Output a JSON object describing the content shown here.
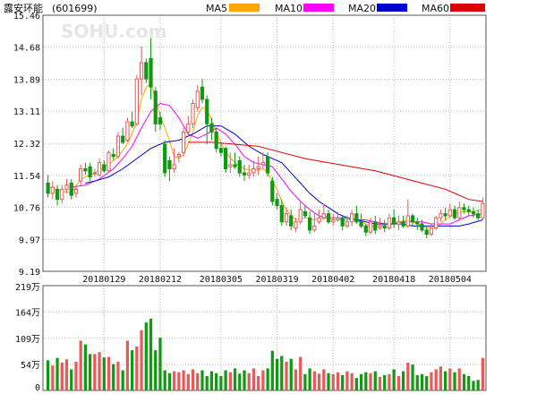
{
  "header": {
    "stock_name": "露安环能",
    "stock_code": "(601699)",
    "watermark": "SOHU.com"
  },
  "legend": [
    {
      "label": "MA5",
      "color": "#ffa500"
    },
    {
      "label": "MA10",
      "color": "#ff00ff"
    },
    {
      "label": "MA20",
      "color": "#0000cc"
    },
    {
      "label": "MA60",
      "color": "#dd0000"
    }
  ],
  "colors": {
    "up": "#e65a5a",
    "down": "#119911",
    "grid": "#bbbbbb",
    "frame": "#555555"
  },
  "chart_data": {
    "type": "candlestick",
    "price_axis": {
      "ticks": [
        "15.46",
        "14.68",
        "13.89",
        "13.11",
        "12.32",
        "11.54",
        "10.76",
        "9.97",
        "9.19"
      ],
      "ylim": [
        9.19,
        15.46
      ]
    },
    "volume_axis": {
      "ticks": [
        "219万",
        "164万",
        "109万",
        "54万",
        "0"
      ],
      "ylim": [
        0,
        219
      ]
    },
    "x_tick_labels": [
      "20180129",
      "20180212",
      "20180305",
      "20180319",
      "20180402",
      "20180418",
      "20180504"
    ],
    "x_tick_index": [
      12,
      24,
      37,
      49,
      61,
      74,
      86
    ],
    "candles": [
      [
        11.35,
        11.1,
        11.55,
        11.0
      ],
      [
        11.1,
        11.25,
        11.4,
        10.95
      ],
      [
        11.2,
        10.95,
        11.3,
        10.8
      ],
      [
        10.95,
        11.2,
        11.3,
        10.85
      ],
      [
        11.2,
        11.3,
        11.45,
        11.1
      ],
      [
        11.35,
        11.05,
        11.45,
        10.95
      ],
      [
        11.1,
        11.2,
        11.3,
        11.0
      ],
      [
        11.4,
        11.7,
        11.8,
        11.3
      ],
      [
        11.7,
        11.65,
        11.85,
        11.55
      ],
      [
        11.75,
        11.5,
        11.85,
        11.4
      ],
      [
        11.6,
        11.6,
        11.7,
        11.5
      ],
      [
        11.55,
        11.85,
        11.95,
        11.5
      ],
      [
        11.8,
        11.65,
        11.9,
        11.6
      ],
      [
        11.65,
        12.1,
        12.15,
        11.6
      ],
      [
        12.05,
        12.0,
        12.2,
        11.9
      ],
      [
        12.0,
        12.5,
        12.6,
        11.95
      ],
      [
        12.5,
        12.35,
        12.7,
        12.3
      ],
      [
        12.4,
        12.85,
        12.95,
        12.35
      ],
      [
        12.85,
        12.75,
        13.1,
        12.7
      ],
      [
        12.8,
        13.9,
        14.0,
        12.75
      ],
      [
        13.9,
        14.3,
        14.7,
        13.5
      ],
      [
        14.3,
        13.9,
        14.4,
        13.8
      ],
      [
        14.4,
        13.7,
        14.9,
        13.4
      ],
      [
        13.6,
        12.8,
        13.7,
        12.6
      ],
      [
        12.95,
        12.8,
        13.1,
        12.65
      ],
      [
        12.3,
        11.6,
        12.4,
        11.5
      ],
      [
        11.9,
        11.7,
        12.0,
        11.4
      ],
      [
        11.7,
        11.8,
        12.2,
        11.6
      ],
      [
        12.0,
        12.05,
        12.1,
        11.85
      ],
      [
        12.1,
        12.6,
        12.7,
        12.0
      ],
      [
        12.6,
        12.8,
        13.0,
        12.5
      ],
      [
        12.8,
        13.3,
        13.4,
        12.7
      ],
      [
        13.2,
        13.6,
        13.75,
        13.1
      ],
      [
        13.7,
        13.4,
        13.9,
        13.3
      ],
      [
        13.4,
        12.8,
        13.5,
        12.3
      ],
      [
        12.8,
        12.6,
        12.95,
        12.4
      ],
      [
        12.6,
        12.2,
        12.7,
        12.1
      ],
      [
        12.2,
        12.1,
        12.35,
        12.0
      ],
      [
        12.2,
        11.7,
        12.25,
        11.6
      ],
      [
        11.75,
        11.8,
        12.1,
        11.6
      ],
      [
        11.8,
        11.75,
        12.1,
        11.7
      ],
      [
        11.9,
        11.6,
        12.0,
        11.5
      ],
      [
        11.6,
        11.55,
        11.8,
        11.4
      ],
      [
        11.55,
        11.6,
        11.8,
        11.45
      ],
      [
        11.6,
        11.7,
        11.9,
        11.5
      ],
      [
        11.7,
        11.75,
        12.0,
        11.55
      ],
      [
        11.8,
        11.85,
        12.1,
        11.7
      ],
      [
        12.0,
        11.6,
        12.1,
        11.5
      ],
      [
        11.4,
        10.9,
        11.5,
        10.8
      ],
      [
        10.95,
        10.8,
        11.1,
        10.7
      ],
      [
        10.8,
        10.4,
        10.95,
        10.3
      ],
      [
        10.4,
        10.6,
        10.75,
        10.3
      ],
      [
        10.55,
        10.3,
        10.7,
        10.2
      ],
      [
        10.25,
        10.4,
        10.5,
        10.15
      ],
      [
        10.4,
        10.7,
        10.9,
        10.35
      ],
      [
        10.65,
        10.55,
        10.8,
        10.5
      ],
      [
        10.5,
        10.2,
        10.65,
        10.1
      ],
      [
        10.2,
        10.3,
        10.6,
        10.15
      ],
      [
        10.4,
        10.5,
        10.7,
        10.35
      ],
      [
        10.5,
        10.6,
        10.85,
        10.45
      ],
      [
        10.6,
        10.4,
        10.7,
        10.35
      ],
      [
        10.4,
        10.45,
        10.6,
        10.3
      ],
      [
        10.45,
        10.5,
        10.65,
        10.4
      ],
      [
        10.5,
        10.3,
        10.55,
        10.2
      ],
      [
        10.3,
        10.4,
        10.55,
        10.25
      ],
      [
        10.4,
        10.6,
        10.7,
        10.3
      ],
      [
        10.6,
        10.4,
        10.8,
        10.35
      ],
      [
        10.4,
        10.3,
        10.6,
        10.25
      ],
      [
        10.3,
        10.15,
        10.35,
        10.05
      ],
      [
        10.15,
        10.4,
        10.5,
        10.1
      ],
      [
        10.4,
        10.2,
        10.55,
        10.1
      ],
      [
        10.25,
        10.3,
        10.5,
        10.2
      ],
      [
        10.3,
        10.25,
        10.45,
        10.15
      ],
      [
        10.25,
        10.5,
        10.6,
        10.2
      ],
      [
        10.5,
        10.35,
        10.7,
        10.25
      ],
      [
        10.35,
        10.4,
        10.55,
        10.2
      ],
      [
        10.4,
        10.3,
        10.55,
        10.25
      ],
      [
        10.3,
        10.55,
        10.95,
        10.25
      ],
      [
        10.55,
        10.4,
        10.6,
        10.3
      ],
      [
        10.4,
        10.35,
        10.5,
        10.2
      ],
      [
        10.35,
        10.2,
        10.45,
        10.15
      ],
      [
        10.2,
        10.1,
        10.3,
        10.0
      ],
      [
        10.1,
        10.25,
        10.35,
        10.05
      ],
      [
        10.25,
        10.5,
        10.55,
        10.2
      ],
      [
        10.5,
        10.6,
        10.7,
        10.4
      ],
      [
        10.6,
        10.55,
        10.75,
        10.45
      ],
      [
        10.55,
        10.7,
        10.85,
        10.5
      ],
      [
        10.7,
        10.5,
        10.8,
        10.45
      ],
      [
        10.5,
        10.75,
        10.9,
        10.45
      ],
      [
        10.75,
        10.7,
        10.85,
        10.6
      ],
      [
        10.7,
        10.65,
        10.8,
        10.55
      ],
      [
        10.65,
        10.6,
        10.75,
        10.5
      ],
      [
        10.6,
        10.5,
        10.7,
        10.45
      ],
      [
        10.5,
        10.85,
        11.0,
        10.45
      ]
    ],
    "volumes": [
      63,
      52,
      68,
      58,
      65,
      44,
      60,
      104,
      96,
      76,
      76,
      80,
      69,
      70,
      55,
      60,
      42,
      104,
      84,
      92,
      126,
      142,
      150,
      84,
      110,
      42,
      36,
      40,
      38,
      42,
      34,
      44,
      36,
      42,
      30,
      40,
      36,
      30,
      42,
      38,
      46,
      35,
      42,
      36,
      46,
      30,
      42,
      46,
      83,
      66,
      72,
      60,
      66,
      44,
      70,
      34,
      46,
      40,
      35,
      44,
      36,
      34,
      38,
      32,
      40,
      36,
      26,
      34,
      38,
      36,
      40,
      28,
      32,
      34,
      44,
      30,
      40,
      58,
      54,
      32,
      34,
      30,
      38,
      44,
      50,
      40,
      46,
      38,
      46,
      34,
      30,
      20,
      22,
      68
    ],
    "moving_averages": {
      "MA5": [
        [
          0,
          11.25
        ],
        [
          5,
          11.1
        ],
        [
          7,
          11.45
        ],
        [
          10,
          11.6
        ],
        [
          13,
          11.8
        ],
        [
          15,
          12.0
        ],
        [
          17,
          12.3
        ],
        [
          19,
          12.85
        ],
        [
          20,
          13.4
        ],
        [
          21,
          13.7
        ],
        [
          22,
          13.8
        ],
        [
          23,
          13.4
        ],
        [
          24,
          13.0
        ],
        [
          25,
          12.7
        ],
        [
          26,
          12.4
        ],
        [
          27,
          12.0
        ],
        [
          28,
          11.95
        ],
        [
          29,
          12.05
        ],
        [
          30,
          12.3
        ],
        [
          31,
          12.6
        ],
        [
          32,
          13.0
        ],
        [
          33,
          13.2
        ],
        [
          34,
          13.15
        ],
        [
          35,
          12.9
        ],
        [
          36,
          12.6
        ],
        [
          37,
          12.35
        ],
        [
          38,
          12.1
        ],
        [
          40,
          11.85
        ],
        [
          42,
          11.7
        ],
        [
          44,
          11.65
        ],
        [
          46,
          11.7
        ],
        [
          47,
          11.6
        ],
        [
          48,
          11.4
        ],
        [
          49,
          11.2
        ],
        [
          50,
          10.9
        ],
        [
          51,
          10.7
        ],
        [
          52,
          10.55
        ],
        [
          53,
          10.45
        ],
        [
          55,
          10.5
        ],
        [
          57,
          10.45
        ],
        [
          59,
          10.5
        ],
        [
          61,
          10.45
        ],
        [
          63,
          10.45
        ],
        [
          65,
          10.45
        ],
        [
          67,
          10.4
        ],
        [
          69,
          10.3
        ],
        [
          71,
          10.3
        ],
        [
          73,
          10.35
        ],
        [
          75,
          10.4
        ],
        [
          77,
          10.45
        ],
        [
          79,
          10.35
        ],
        [
          81,
          10.25
        ],
        [
          83,
          10.25
        ],
        [
          85,
          10.45
        ],
        [
          87,
          10.6
        ],
        [
          89,
          10.65
        ],
        [
          91,
          10.65
        ],
        [
          93,
          10.7
        ]
      ],
      "MA10": [
        [
          5,
          11.25
        ],
        [
          8,
          11.3
        ],
        [
          11,
          11.45
        ],
        [
          14,
          11.7
        ],
        [
          16,
          11.95
        ],
        [
          18,
          12.25
        ],
        [
          20,
          12.7
        ],
        [
          22,
          13.1
        ],
        [
          24,
          13.3
        ],
        [
          26,
          13.25
        ],
        [
          28,
          12.95
        ],
        [
          30,
          12.55
        ],
        [
          32,
          12.45
        ],
        [
          34,
          12.55
        ],
        [
          36,
          12.7
        ],
        [
          38,
          12.55
        ],
        [
          40,
          12.3
        ],
        [
          42,
          12.0
        ],
        [
          44,
          11.85
        ],
        [
          46,
          11.8
        ],
        [
          48,
          11.75
        ],
        [
          50,
          11.45
        ],
        [
          52,
          11.15
        ],
        [
          54,
          10.9
        ],
        [
          56,
          10.7
        ],
        [
          58,
          10.55
        ],
        [
          60,
          10.5
        ],
        [
          62,
          10.5
        ],
        [
          64,
          10.5
        ],
        [
          66,
          10.45
        ],
        [
          68,
          10.45
        ],
        [
          70,
          10.4
        ],
        [
          72,
          10.35
        ],
        [
          74,
          10.35
        ],
        [
          76,
          10.4
        ],
        [
          78,
          10.4
        ],
        [
          80,
          10.4
        ],
        [
          82,
          10.35
        ],
        [
          84,
          10.35
        ],
        [
          86,
          10.35
        ],
        [
          88,
          10.45
        ],
        [
          90,
          10.55
        ],
        [
          93,
          10.6
        ]
      ],
      "MA20": [
        [
          8,
          11.35
        ],
        [
          10,
          11.4
        ],
        [
          13,
          11.5
        ],
        [
          16,
          11.7
        ],
        [
          19,
          11.95
        ],
        [
          22,
          12.2
        ],
        [
          25,
          12.35
        ],
        [
          28,
          12.4
        ],
        [
          31,
          12.55
        ],
        [
          34,
          12.75
        ],
        [
          37,
          12.75
        ],
        [
          40,
          12.55
        ],
        [
          43,
          12.25
        ],
        [
          46,
          12.05
        ],
        [
          48,
          11.95
        ],
        [
          50,
          11.85
        ],
        [
          52,
          11.6
        ],
        [
          54,
          11.35
        ],
        [
          56,
          11.1
        ],
        [
          58,
          10.9
        ],
        [
          60,
          10.75
        ],
        [
          62,
          10.6
        ],
        [
          64,
          10.5
        ],
        [
          66,
          10.45
        ],
        [
          68,
          10.4
        ],
        [
          70,
          10.35
        ],
        [
          72,
          10.35
        ],
        [
          74,
          10.35
        ],
        [
          76,
          10.35
        ],
        [
          78,
          10.3
        ],
        [
          80,
          10.3
        ],
        [
          82,
          10.3
        ],
        [
          84,
          10.3
        ],
        [
          86,
          10.3
        ],
        [
          88,
          10.3
        ],
        [
          90,
          10.35
        ],
        [
          93,
          10.45
        ]
      ],
      "MA60": [
        [
          30,
          12.35
        ],
        [
          35,
          12.35
        ],
        [
          40,
          12.3
        ],
        [
          45,
          12.25
        ],
        [
          50,
          12.1
        ],
        [
          55,
          11.95
        ],
        [
          60,
          11.85
        ],
        [
          65,
          11.75
        ],
        [
          70,
          11.65
        ],
        [
          75,
          11.5
        ],
        [
          80,
          11.35
        ],
        [
          85,
          11.2
        ],
        [
          90,
          10.95
        ],
        [
          93,
          10.9
        ]
      ]
    }
  }
}
